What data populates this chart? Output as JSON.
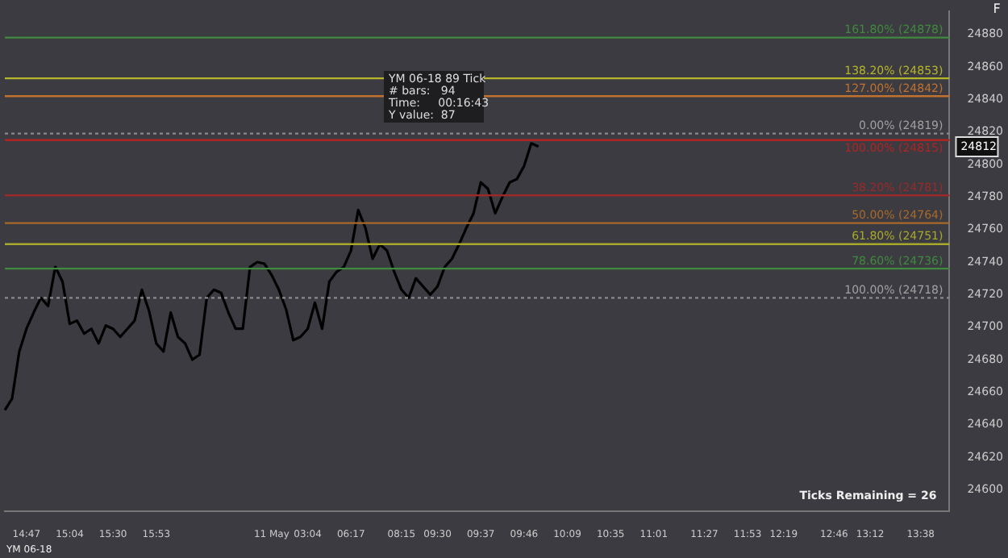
{
  "chart_data": {
    "type": "line",
    "categories": [
      null,
      null,
      null,
      "14:47",
      null,
      null,
      null,
      null,
      null,
      "15:04",
      null,
      null,
      null,
      null,
      null,
      "15:30",
      null,
      null,
      null,
      null,
      null,
      "15:53",
      null,
      null,
      null,
      null,
      null,
      null,
      null,
      null,
      null,
      null,
      null,
      null,
      null,
      null,
      null,
      "11 May",
      null,
      null,
      null,
      null,
      "03:04",
      null,
      null,
      null,
      null,
      null,
      "06:17",
      null,
      null,
      null,
      null,
      null,
      null,
      "08:15",
      null,
      null,
      null,
      null,
      "09:30",
      null,
      null,
      null,
      null,
      null,
      "09:37",
      null,
      null,
      null,
      null,
      null,
      "09:46",
      null,
      null,
      null,
      null,
      null,
      "10:09",
      null,
      null,
      null,
      null,
      null,
      "10:35",
      null,
      null,
      null,
      null,
      null,
      "11:01",
      null,
      null,
      null,
      null,
      null,
      null,
      "11:27",
      null,
      null,
      null,
      null,
      null,
      "11:53",
      null,
      null,
      null,
      null,
      "12:19",
      null,
      null,
      null,
      null,
      null,
      null,
      "12:46",
      null,
      null,
      null,
      null,
      "13:12",
      null,
      null,
      null,
      null,
      null,
      null,
      "13:38",
      null,
      null,
      null,
      null
    ],
    "series": [
      {
        "color": "#000000",
        "values": [
          24649,
          24656,
          24685,
          24699,
          24709,
          24718,
          24713,
          24737,
          24728,
          24702,
          24704,
          24696,
          24699,
          24690,
          24701,
          24699,
          24694,
          24699,
          24704,
          24723,
          24710,
          24690,
          24685,
          24709,
          24694,
          24690,
          24680,
          24683,
          24718,
          24723,
          24721,
          24709,
          24699,
          24699,
          24737,
          24740,
          24739,
          24732,
          24723,
          24711,
          24692,
          24694,
          24699,
          24715,
          24699,
          24728,
          24734,
          24737,
          24747,
          24772,
          24761,
          24742,
          24751,
          24747,
          24734,
          24723,
          24718,
          24730,
          24725,
          24720,
          24725,
          24737,
          24742,
          24751,
          24761,
          24770,
          24789,
          24785,
          24770,
          24780,
          24789,
          24791,
          24799,
          24813,
          24811,
          null,
          null,
          null,
          null,
          null,
          null,
          null,
          null,
          null,
          null,
          null,
          null,
          null,
          null,
          null,
          null,
          null,
          null,
          null,
          null,
          null,
          null,
          null,
          null,
          null,
          null,
          null,
          null,
          null,
          null,
          null,
          null,
          null,
          null,
          null,
          null,
          null,
          null,
          null,
          null,
          null,
          null,
          null,
          null,
          null,
          null,
          null,
          null,
          null,
          null,
          null,
          null,
          null,
          null,
          null,
          null,
          null
        ]
      }
    ],
    "ylim": [
      24587,
      24894
    ],
    "yticks": [
      24600,
      24620,
      24640,
      24660,
      24680,
      24700,
      24720,
      24740,
      24760,
      24780,
      24800,
      24820,
      24840,
      24860,
      24880
    ],
    "grid": false,
    "legend": false,
    "marker": "none",
    "line_style": "solid",
    "ref_lines": [
      {
        "axis": "y",
        "value": 24878,
        "label": "161.80% (24878)",
        "color": "#3f8a3f",
        "line_style": "solid"
      },
      {
        "axis": "y",
        "value": 24853,
        "label": "138.20% (24853)",
        "color": "#b5b52a",
        "line_style": "solid"
      },
      {
        "axis": "y",
        "value": 24842,
        "label": "127.00% (24842)",
        "color": "#c0722e",
        "line_style": "solid"
      },
      {
        "axis": "y",
        "value": 24819,
        "label": "0.00% (24819)",
        "color": "#8a8a8a",
        "line_style": "dotted"
      },
      {
        "axis": "y",
        "value": 24815,
        "label": "100.00% (24815)",
        "color": "#b02424",
        "line_style": "solid"
      },
      {
        "axis": "y",
        "value": 24781,
        "label": "38.20% (24781)",
        "color": "#9a2a2a",
        "line_style": "solid"
      },
      {
        "axis": "y",
        "value": 24764,
        "label": "50.00% (24764)",
        "color": "#a86a2a",
        "line_style": "solid"
      },
      {
        "axis": "y",
        "value": 24751,
        "label": "61.80% (24751)",
        "color": "#a8a82a",
        "line_style": "solid"
      },
      {
        "axis": "y",
        "value": 24736,
        "label": "78.60% (24736)",
        "color": "#3f8a3f",
        "line_style": "solid"
      },
      {
        "axis": "y",
        "value": 24718,
        "label": "100.00% (24718)",
        "color": "#8a8a8a",
        "line_style": "dotted"
      }
    ],
    "annotations": [
      "YM 06-18 89 Tick",
      "# bars:   94",
      "Time:     00:16:43",
      "Y value:  87",
      "Ticks Remaining = 26",
      "YM 06-18",
      "F",
      "24812"
    ]
  }
}
